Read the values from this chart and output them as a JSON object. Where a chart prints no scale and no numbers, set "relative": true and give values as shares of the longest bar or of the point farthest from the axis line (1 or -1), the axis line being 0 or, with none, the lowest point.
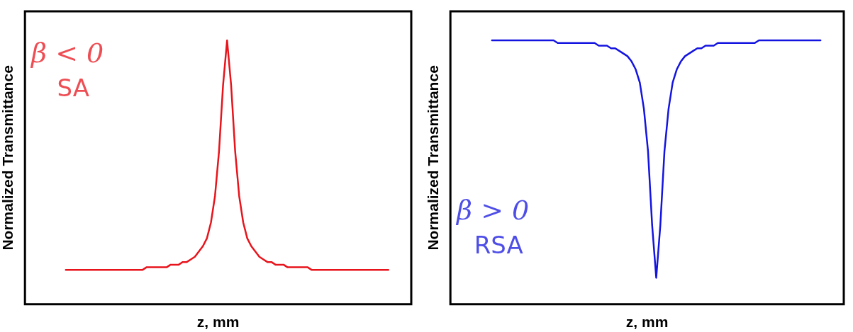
{
  "chart_data": [
    {
      "type": "line",
      "relative": true,
      "xlabel": "z, mm",
      "ylabel": "Normalized Transmittance",
      "annotations": [
        "β < 0",
        "SA"
      ],
      "legend": false,
      "marker": "none",
      "categories": [
        null,
        null,
        null,
        null,
        null,
        null,
        null,
        null,
        null,
        null,
        null,
        null,
        null,
        null,
        null,
        null,
        null,
        null,
        null,
        null,
        null,
        null,
        null,
        null,
        null,
        null,
        null,
        null,
        null,
        null,
        null,
        null,
        null,
        null,
        null,
        null,
        null,
        null,
        null,
        null,
        null,
        null,
        null,
        null,
        null,
        null,
        null,
        null,
        null,
        null,
        null,
        null,
        null,
        null,
        null,
        null,
        null,
        null,
        null,
        null,
        null,
        null,
        null,
        null,
        null,
        null,
        null,
        null,
        null,
        null,
        null,
        null,
        null,
        null,
        null,
        null,
        null,
        null,
        null,
        null,
        null
      ],
      "series": [
        {
          "color": "#e8141c",
          "values": [
            0.13,
            0.13,
            0.13,
            0.13,
            0.13,
            0.13,
            0.13,
            0.13,
            0.13,
            0.13,
            0.13,
            0.13,
            0.13,
            0.13,
            0.13,
            0.13,
            0.13,
            0.13,
            0.13,
            0.13,
            0.14,
            0.14,
            0.14,
            0.14,
            0.14,
            0.14,
            0.15,
            0.15,
            0.15,
            0.16,
            0.16,
            0.17,
            0.18,
            0.2,
            0.22,
            0.25,
            0.31,
            0.41,
            0.58,
            0.83,
            1.0,
            0.83,
            0.58,
            0.41,
            0.31,
            0.25,
            0.22,
            0.2,
            0.18,
            0.17,
            0.16,
            0.16,
            0.15,
            0.15,
            0.15,
            0.14,
            0.14,
            0.14,
            0.14,
            0.14,
            0.14,
            0.13,
            0.13,
            0.13,
            0.13,
            0.13,
            0.13,
            0.13,
            0.13,
            0.13,
            0.13,
            0.13,
            0.13,
            0.13,
            0.13,
            0.13,
            0.13,
            0.13,
            0.13,
            0.13,
            0.13
          ]
        }
      ]
    },
    {
      "type": "line",
      "relative": true,
      "xlabel": "z, mm",
      "ylabel": "Normalized Transmittance",
      "annotations": [
        "β > 0",
        "RSA"
      ],
      "legend": false,
      "marker": "none",
      "categories": [
        null,
        null,
        null,
        null,
        null,
        null,
        null,
        null,
        null,
        null,
        null,
        null,
        null,
        null,
        null,
        null,
        null,
        null,
        null,
        null,
        null,
        null,
        null,
        null,
        null,
        null,
        null,
        null,
        null,
        null,
        null,
        null,
        null,
        null,
        null,
        null,
        null,
        null,
        null,
        null,
        null,
        null,
        null,
        null,
        null,
        null,
        null,
        null,
        null,
        null,
        null,
        null,
        null,
        null,
        null,
        null,
        null,
        null,
        null,
        null,
        null,
        null,
        null,
        null,
        null,
        null,
        null,
        null,
        null,
        null,
        null,
        null,
        null,
        null,
        null,
        null,
        null,
        null,
        null,
        null,
        null
      ],
      "series": [
        {
          "color": "#1414e0",
          "values": [
            1,
            1,
            1,
            1,
            1,
            1,
            1,
            1,
            1,
            1,
            1,
            1,
            1,
            1,
            1,
            1,
            0.99,
            0.99,
            0.99,
            0.99,
            0.99,
            0.99,
            0.99,
            0.99,
            0.99,
            0.99,
            0.98,
            0.98,
            0.98,
            0.97,
            0.97,
            0.96,
            0.95,
            0.94,
            0.92,
            0.89,
            0.84,
            0.74,
            0.58,
            0.3,
            0.1,
            0.3,
            0.58,
            0.74,
            0.84,
            0.89,
            0.92,
            0.94,
            0.95,
            0.96,
            0.97,
            0.97,
            0.98,
            0.98,
            0.98,
            0.99,
            0.99,
            0.99,
            0.99,
            0.99,
            0.99,
            0.99,
            0.99,
            0.99,
            0.99,
            1,
            1,
            1,
            1,
            1,
            1,
            1,
            1,
            1,
            1,
            1,
            1,
            1,
            1,
            1,
            1
          ]
        }
      ]
    }
  ]
}
